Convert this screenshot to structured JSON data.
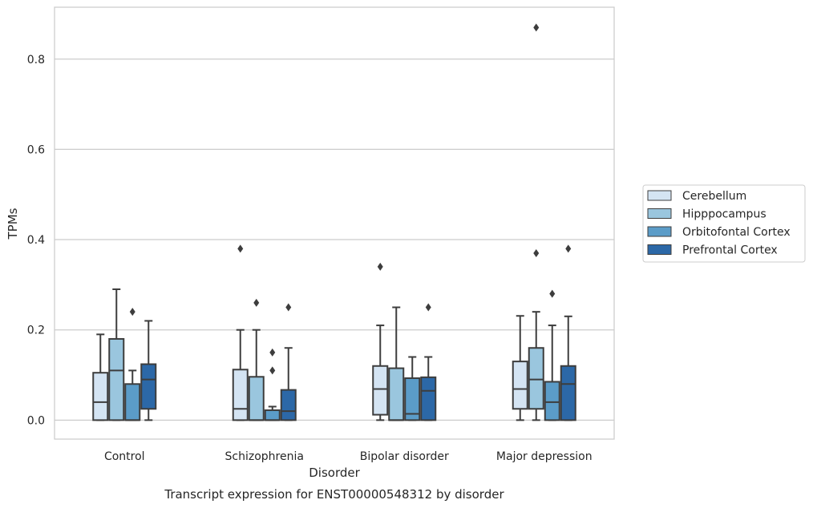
{
  "chart_data": {
    "type": "boxplot",
    "caption": "Transcript expression for ENST00000548312 by disorder",
    "xlabel": "Disorder",
    "ylabel": "TPMs",
    "ylim": [
      -0.042,
      0.915
    ],
    "yticks": [
      0.0,
      0.2,
      0.4,
      0.6,
      0.8
    ],
    "ytick_labels": [
      "0.0",
      "0.2",
      "0.4",
      "0.6",
      "0.8"
    ],
    "grid": "horizontal",
    "legend_position": "right",
    "categories": [
      "Control",
      "Schizophrenia",
      "Bipolar disorder",
      "Major depression"
    ],
    "series": [
      {
        "name": "Cerebellum",
        "color": "#d4e4f3",
        "boxes": [
          {
            "whislo": 0.0,
            "q1": 0.0,
            "med": 0.04,
            "q3": 0.105,
            "whishi": 0.19,
            "fliers": []
          },
          {
            "whislo": 0.0,
            "q1": 0.0,
            "med": 0.025,
            "q3": 0.112,
            "whishi": 0.2,
            "fliers": [
              0.38
            ]
          },
          {
            "whislo": 0.0,
            "q1": 0.012,
            "med": 0.069,
            "q3": 0.12,
            "whishi": 0.21,
            "fliers": [
              0.34
            ]
          },
          {
            "whislo": 0.0,
            "q1": 0.025,
            "med": 0.069,
            "q3": 0.13,
            "whishi": 0.231,
            "fliers": []
          }
        ]
      },
      {
        "name": "Hipppocampus",
        "color": "#9ac6de",
        "boxes": [
          {
            "whislo": 0.0,
            "q1": 0.0,
            "med": 0.11,
            "q3": 0.18,
            "whishi": 0.29,
            "fliers": []
          },
          {
            "whislo": 0.0,
            "q1": 0.0,
            "med": 0.0,
            "q3": 0.096,
            "whishi": 0.2,
            "fliers": [
              0.26
            ]
          },
          {
            "whislo": 0.0,
            "q1": 0.0,
            "med": 0.0,
            "q3": 0.115,
            "whishi": 0.25,
            "fliers": []
          },
          {
            "whislo": 0.0,
            "q1": 0.025,
            "med": 0.09,
            "q3": 0.16,
            "whishi": 0.24,
            "fliers": [
              0.37,
              0.87
            ]
          }
        ]
      },
      {
        "name": "Orbitofontal Cortex",
        "color": "#5b9cc8",
        "boxes": [
          {
            "whislo": 0.0,
            "q1": 0.0,
            "med": 0.0,
            "q3": 0.08,
            "whishi": 0.11,
            "fliers": [
              0.24
            ]
          },
          {
            "whislo": 0.0,
            "q1": 0.0,
            "med": 0.0,
            "q3": 0.022,
            "whishi": 0.03,
            "fliers": [
              0.11,
              0.15
            ]
          },
          {
            "whislo": 0.0,
            "q1": 0.0,
            "med": 0.014,
            "q3": 0.093,
            "whishi": 0.14,
            "fliers": []
          },
          {
            "whislo": 0.0,
            "q1": 0.0,
            "med": 0.04,
            "q3": 0.085,
            "whishi": 0.21,
            "fliers": [
              0.28
            ]
          }
        ]
      },
      {
        "name": "Prefrontal Cortex",
        "color": "#2c68a7",
        "boxes": [
          {
            "whislo": 0.0,
            "q1": 0.025,
            "med": 0.09,
            "q3": 0.124,
            "whishi": 0.22,
            "fliers": []
          },
          {
            "whislo": 0.0,
            "q1": 0.0,
            "med": 0.02,
            "q3": 0.067,
            "whishi": 0.16,
            "fliers": [
              0.25
            ]
          },
          {
            "whislo": 0.0,
            "q1": 0.0,
            "med": 0.065,
            "q3": 0.095,
            "whishi": 0.14,
            "fliers": [
              0.25
            ]
          },
          {
            "whislo": 0.0,
            "q1": 0.0,
            "med": 0.08,
            "q3": 0.12,
            "whishi": 0.23,
            "fliers": [
              0.38
            ]
          }
        ]
      }
    ],
    "colors": {
      "box_edge": "#3d3d3d",
      "grid": "#cccccc",
      "frame": "#cccccc",
      "text": "#262626",
      "legend_border": "#cccccc"
    }
  }
}
